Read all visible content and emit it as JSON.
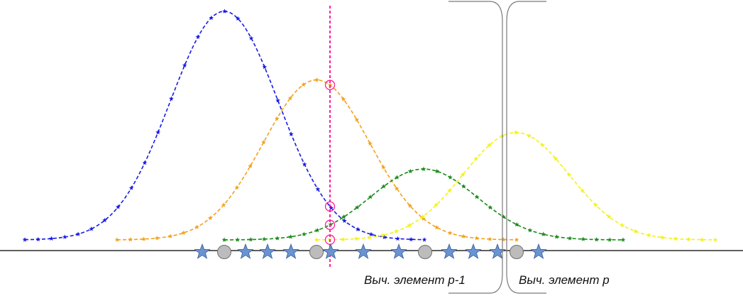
{
  "labels": {
    "element_p_minus_1": "Выч. элемент p-1",
    "element_p": "Выч. элемент p"
  },
  "axis_markers": [
    "star",
    "circle",
    "star",
    "star",
    "star",
    "circle",
    "star",
    "star",
    "star",
    "circle",
    "star",
    "star",
    "star",
    "circle",
    "star"
  ],
  "curves": [
    {
      "color": "#1a1ae6",
      "center": 316,
      "amplitude": 1.0,
      "spread": 76,
      "from": 35,
      "to": 598
    },
    {
      "color": "#f2a11d",
      "center": 446,
      "amplitude": 0.7,
      "spread": 75,
      "from": 165,
      "to": 728
    },
    {
      "color": "#1a8a1a",
      "center": 597,
      "amplitude": 0.31,
      "spread": 75,
      "from": 316,
      "to": 878
    },
    {
      "color": "#f2f21a",
      "center": 727,
      "amplitude": 0.47,
      "spread": 75,
      "from": 446,
      "to": 1008
    }
  ],
  "colors": {
    "guide_line": "#ff1f9a",
    "marker_fill": "#6a93cf",
    "circle_fill": "#bcbcbc",
    "axis": "#000000",
    "brace": "#7a7a7a"
  },
  "icons": {
    "star_marker": "star-icon",
    "circle_marker": "circle-icon",
    "intersection_marker": "ring-icon"
  }
}
